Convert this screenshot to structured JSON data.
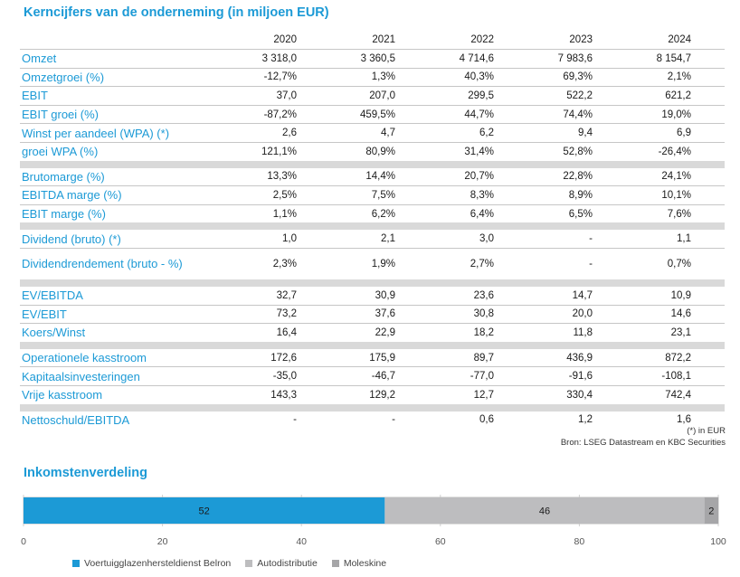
{
  "title": "Kerncijfers van de onderneming (in miljoen EUR)",
  "years": [
    "2020",
    "2021",
    "2022",
    "2023",
    "2024"
  ],
  "groups": [
    [
      {
        "label": "Omzet",
        "values": [
          "3 318,0",
          "3 360,5",
          "4 714,6",
          "7 983,6",
          "8 154,7"
        ]
      },
      {
        "label": "Omzetgroei (%)",
        "values": [
          "-12,7%",
          "1,3%",
          "40,3%",
          "69,3%",
          "2,1%"
        ]
      },
      {
        "label": "EBIT",
        "values": [
          "37,0",
          "207,0",
          "299,5",
          "522,2",
          "621,2"
        ]
      },
      {
        "label": "EBIT groei (%)",
        "values": [
          "-87,2%",
          "459,5%",
          "44,7%",
          "74,4%",
          "19,0%"
        ]
      },
      {
        "label": "Winst per aandeel (WPA) (*)",
        "values": [
          "2,6",
          "4,7",
          "6,2",
          "9,4",
          "6,9"
        ]
      },
      {
        "label": "groei WPA (%)",
        "values": [
          "121,1%",
          "80,9%",
          "31,4%",
          "52,8%",
          "-26,4%"
        ]
      }
    ],
    [
      {
        "label": "Brutomarge (%)",
        "values": [
          "13,3%",
          "14,4%",
          "20,7%",
          "22,8%",
          "24,1%"
        ]
      },
      {
        "label": "EBITDA marge (%)",
        "values": [
          "2,5%",
          "7,5%",
          "8,3%",
          "8,9%",
          "10,1%"
        ]
      },
      {
        "label": "EBIT marge (%)",
        "values": [
          "1,1%",
          "6,2%",
          "6,4%",
          "6,5%",
          "7,6%"
        ]
      }
    ],
    [
      {
        "label": "Dividend (bruto) (*)",
        "values": [
          "1,0",
          "2,1",
          "3,0",
          "-",
          "1,1"
        ]
      },
      {
        "label": "Dividendrendement (bruto - %)",
        "values": [
          "2,3%",
          "1,9%",
          "2,7%",
          "-",
          "0,7%"
        ],
        "tall": true
      }
    ],
    [
      {
        "label": "EV/EBITDA",
        "values": [
          "32,7",
          "30,9",
          "23,6",
          "14,7",
          "10,9"
        ]
      },
      {
        "label": "EV/EBIT",
        "values": [
          "73,2",
          "37,6",
          "30,8",
          "20,0",
          "14,6"
        ]
      },
      {
        "label": "Koers/Winst",
        "values": [
          "16,4",
          "22,9",
          "18,2",
          "11,8",
          "23,1"
        ]
      }
    ],
    [
      {
        "label": "Operationele kasstroom",
        "values": [
          "172,6",
          "175,9",
          "89,7",
          "436,9",
          "872,2"
        ]
      },
      {
        "label": "Kapitaalsinvesteringen",
        "values": [
          "-35,0",
          "-46,7",
          "-77,0",
          "-91,6",
          "-108,1"
        ]
      },
      {
        "label": "Vrije kasstroom",
        "values": [
          "143,3",
          "129,2",
          "12,7",
          "330,4",
          "742,4"
        ]
      }
    ],
    [
      {
        "label": "Nettoschuld/EBITDA",
        "values": [
          "-",
          "-",
          "0,6",
          "1,2",
          "1,6"
        ]
      }
    ]
  ],
  "notes": {
    "line1": "(*) in EUR",
    "line2": "Bron: LSEG Datastream en KBC Securities"
  },
  "chart_data": {
    "type": "bar",
    "stacked": true,
    "orientation": "horizontal",
    "title": "Inkomstenverdeling",
    "series": [
      {
        "name": "Voertuigglazenhersteldienst Belron",
        "values": [
          52
        ],
        "color": "#1c9ad6"
      },
      {
        "name": "Autodistributie",
        "values": [
          46
        ],
        "color": "#bdbdbf"
      },
      {
        "name": "Moleskine",
        "values": [
          2
        ],
        "color": "#a6a6a8"
      }
    ],
    "xlim": [
      0,
      100
    ],
    "xticks": [
      0,
      20,
      40,
      60,
      80,
      100
    ],
    "grid": true,
    "legend": "bottom"
  }
}
